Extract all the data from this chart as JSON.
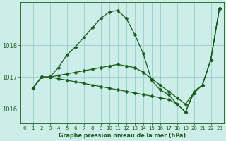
{
  "bg_color": "#cceee8",
  "line_color": "#1a5c1a",
  "marker_color": "#1a5c1a",
  "grid_color": "#99cccc",
  "axis_label_color": "#1a5c1a",
  "tick_color": "#1a5c1a",
  "xlabel": "Graphe pression niveau de la mer (hPa)",
  "xlim": [
    -0.5,
    23.5
  ],
  "ylim": [
    1015.55,
    1019.35
  ],
  "yticks": [
    1016,
    1017,
    1018
  ],
  "xticks": [
    0,
    1,
    2,
    3,
    4,
    5,
    6,
    7,
    8,
    9,
    10,
    11,
    12,
    13,
    14,
    15,
    16,
    17,
    18,
    19,
    20,
    21,
    22,
    23
  ],
  "series": [
    [
      1016.65,
      1017.0,
      1017.0,
      1017.3,
      1017.7,
      1017.95,
      1018.25,
      1018.55,
      1018.85,
      1019.05,
      1019.1,
      1018.85,
      1018.35,
      1017.75,
      1016.9,
      1016.6,
      1016.45,
      1016.15,
      1015.9,
      1016.55,
      1016.75,
      1017.55,
      1019.15
    ],
    [
      1016.65,
      1017.0,
      1017.0,
      1017.05,
      1017.1,
      1017.15,
      1017.2,
      1017.25,
      1017.3,
      1017.35,
      1017.4,
      1017.35,
      1017.3,
      1017.15,
      1016.95,
      1016.75,
      1016.55,
      1016.35,
      1016.15,
      1016.5,
      1016.75,
      1017.55,
      1019.15
    ],
    [
      1016.65,
      1017.0,
      1017.0,
      1016.95,
      1016.9,
      1016.85,
      1016.8,
      1016.75,
      1016.7,
      1016.65,
      1016.6,
      1016.55,
      1016.5,
      1016.45,
      1016.4,
      1016.35,
      1016.3,
      1016.15,
      1015.9,
      1016.5,
      1016.75,
      1017.55,
      1019.15
    ]
  ],
  "series_hours": [
    [
      1,
      2,
      3,
      4,
      5,
      6,
      7,
      8,
      9,
      10,
      11,
      12,
      13,
      14,
      15,
      16,
      17,
      18,
      19,
      20,
      21,
      22,
      23
    ],
    [
      1,
      2,
      3,
      4,
      5,
      6,
      7,
      8,
      9,
      10,
      11,
      12,
      13,
      14,
      15,
      16,
      17,
      18,
      19,
      20,
      21,
      22,
      23
    ],
    [
      1,
      2,
      3,
      4,
      5,
      6,
      7,
      8,
      9,
      10,
      11,
      12,
      13,
      14,
      15,
      16,
      17,
      18,
      19,
      20,
      21,
      22,
      23
    ]
  ]
}
